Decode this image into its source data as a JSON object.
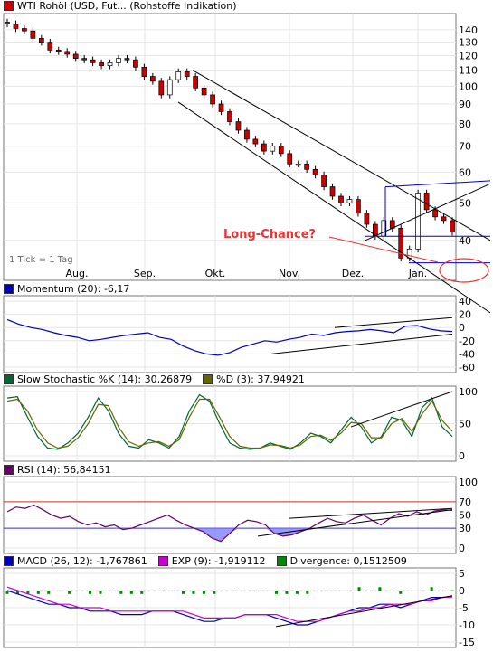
{
  "price_panel": {
    "title": "WTI Rohöl (USD, Fut... (Rohstoffe Indikation)",
    "tick_note": "1 Tick = 1 Tag",
    "annotation": "Long-Chance?",
    "annotation_color": "#ee3333",
    "price_color": "#cc0000"
  },
  "momentum_panel": {
    "label": "Momentum (20): -6,17",
    "color": "#0000bb"
  },
  "stoch_panel": {
    "k_label": "Slow Stochastic %K (14): 30,26879",
    "d_label": "%D (3): 37,94921",
    "k_color": "#006633",
    "d_color": "#666600"
  },
  "rsi_panel": {
    "label": "RSI (14): 56,84151",
    "color": "#660066"
  },
  "macd_panel": {
    "macd_label": "MACD (26, 12): -1,767861",
    "exp_label": "EXP (9): -1,919112",
    "div_label": "Divergence: 0,1512509",
    "macd_color": "#0000bb",
    "exp_color": "#cc00cc",
    "div_color": "#008800"
  },
  "chart_data": [
    {
      "type": "candlestick",
      "title": "WTI Rohöl (USD, Fut... (Rohstoffe Indikation)",
      "x_tick_labels": [
        "Aug.",
        "Sep.",
        "Okt.",
        "Nov.",
        "Dez.",
        "Jan."
      ],
      "y_tick_labels": [
        "140",
        "130",
        "120",
        "110",
        "100",
        "90",
        "80",
        "70",
        "60",
        "50",
        "40"
      ],
      "scale": "log",
      "ylim": [
        34,
        150
      ],
      "approx_close_series": [
        145,
        141,
        139,
        133,
        130,
        124,
        123,
        121,
        118,
        117,
        115,
        113,
        115,
        118,
        117,
        112,
        106,
        103,
        95,
        104,
        109,
        106,
        99,
        95,
        90,
        86,
        81,
        77,
        73,
        71,
        68,
        70,
        67,
        63,
        63,
        61,
        59,
        55,
        52,
        50,
        51,
        47,
        44,
        41,
        45,
        43,
        36,
        38,
        53,
        48,
        46,
        45,
        42
      ],
      "trendlines": [
        "upper channel",
        "lower channel",
        "parallel channel line",
        "resistance ~57",
        "support ~41",
        "support ~35"
      ]
    },
    {
      "type": "line",
      "title": "Momentum (20): -6,17",
      "y_tick_labels": [
        "40",
        "20",
        "0",
        "-20",
        "-40",
        "-60"
      ],
      "ylim": [
        -60,
        40
      ],
      "approx_values": [
        12,
        5,
        0,
        -3,
        -8,
        -12,
        -15,
        -20,
        -18,
        -15,
        -12,
        -10,
        -8,
        -15,
        -18,
        -28,
        -35,
        -40,
        -42,
        -38,
        -30,
        -25,
        -20,
        -22,
        -18,
        -15,
        -10,
        -12,
        -8,
        -6,
        -5,
        -3,
        -5,
        -8,
        2,
        3,
        -2,
        -5,
        -6
      ]
    },
    {
      "type": "line",
      "title": "Slow Stochastic",
      "series": [
        {
          "name": "%K (14): 30,26879",
          "approx_values": [
            90,
            92,
            60,
            30,
            12,
            10,
            20,
            35,
            60,
            90,
            70,
            35,
            15,
            12,
            25,
            20,
            12,
            30,
            70,
            95,
            85,
            50,
            20,
            12,
            10,
            12,
            20,
            15,
            10,
            20,
            35,
            30,
            20,
            40,
            60,
            45,
            20,
            30,
            60,
            55,
            30,
            75,
            90,
            45,
            30
          ]
        },
        {
          "name": "%D (3): 37,94921",
          "approx_values": [
            85,
            88,
            70,
            40,
            20,
            12,
            15,
            28,
            50,
            80,
            78,
            45,
            22,
            15,
            20,
            22,
            15,
            25,
            60,
            88,
            88,
            60,
            30,
            15,
            12,
            12,
            17,
            16,
            12,
            17,
            30,
            32,
            24,
            35,
            52,
            50,
            28,
            28,
            50,
            58,
            38,
            65,
            85,
            55,
            38
          ]
        }
      ],
      "y_tick_labels": [
        "100",
        "50",
        "0"
      ],
      "ylim": [
        0,
        100
      ]
    },
    {
      "type": "line",
      "title": "RSI (14): 56,84151",
      "y_tick_labels": [
        "100",
        "70",
        "50",
        "30",
        "0"
      ],
      "ylim": [
        0,
        100
      ],
      "reference_lines": [
        70,
        30
      ],
      "approx_values": [
        55,
        62,
        60,
        65,
        58,
        50,
        45,
        48,
        40,
        35,
        38,
        32,
        35,
        28,
        30,
        35,
        40,
        45,
        50,
        42,
        35,
        30,
        25,
        15,
        10,
        22,
        35,
        42,
        40,
        35,
        22,
        18,
        20,
        25,
        30,
        38,
        45,
        40,
        38,
        45,
        50,
        42,
        35,
        45,
        52,
        48,
        55,
        50,
        56,
        58,
        57
      ]
    },
    {
      "type": "line",
      "title": "MACD",
      "series": [
        {
          "name": "MACD (26, 12): -1,767861",
          "approx_values": [
            0,
            -1,
            -2,
            -3,
            -4,
            -4,
            -5,
            -5,
            -6,
            -6,
            -6,
            -7,
            -7,
            -7,
            -6,
            -6,
            -6,
            -7,
            -8,
            -9,
            -9,
            -8,
            -8,
            -7,
            -7,
            -7,
            -8,
            -9,
            -10,
            -10,
            -9,
            -8,
            -7,
            -6,
            -5,
            -5,
            -4,
            -4,
            -5,
            -4,
            -3,
            -2,
            -2,
            -1.8
          ]
        },
        {
          "name": "EXP (9): -1,919112",
          "approx_values": [
            1,
            0,
            -1,
            -2,
            -3,
            -4,
            -4,
            -5,
            -5,
            -5,
            -6,
            -6,
            -6,
            -6,
            -6,
            -6,
            -6,
            -6,
            -7,
            -8,
            -8,
            -8,
            -8,
            -7,
            -7,
            -7,
            -7,
            -8,
            -9,
            -9,
            -9,
            -8,
            -7,
            -6,
            -6,
            -5,
            -5,
            -4,
            -4,
            -4,
            -3,
            -3,
            -2,
            -1.9
          ]
        },
        {
          "name": "Divergence: 0,1512509",
          "approx_values": [
            0,
            0,
            0,
            0,
            0,
            0,
            0,
            0,
            0,
            0,
            0,
            0,
            0,
            0,
            0,
            0,
            0,
            0,
            0,
            0,
            0,
            0,
            0,
            0,
            0,
            0,
            0,
            0,
            0,
            0,
            0,
            0,
            0,
            0,
            0,
            0,
            0,
            0,
            0,
            0,
            0,
            0,
            0,
            0.15
          ]
        }
      ],
      "y_tick_labels": [
        "5",
        "0",
        "-5",
        "-10",
        "-15"
      ],
      "ylim": [
        -15,
        5
      ]
    }
  ]
}
